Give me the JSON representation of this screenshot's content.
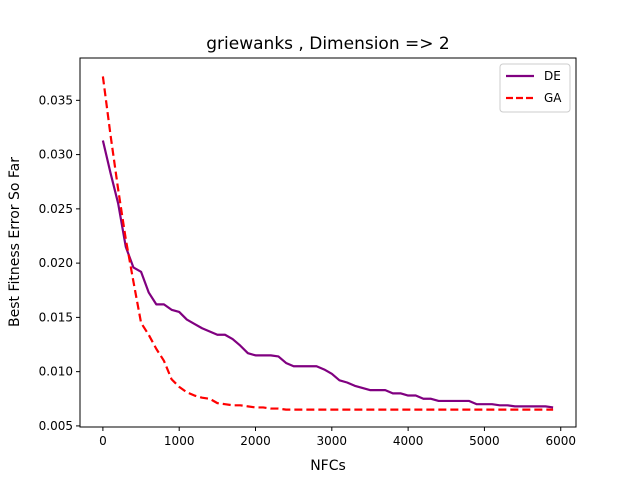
{
  "chart_data": {
    "type": "line",
    "title": "griewanks , Dimension => 2",
    "xlabel": "NFCs",
    "ylabel": "Best Fitness Error So Far",
    "xlim": [
      -300,
      6200
    ],
    "ylim": [
      0.0049,
      0.0389
    ],
    "xticks": [
      0,
      1000,
      2000,
      3000,
      4000,
      5000,
      6000
    ],
    "xtick_labels": [
      "0",
      "1000",
      "2000",
      "3000",
      "4000",
      "5000",
      "6000"
    ],
    "yticks": [
      0.005,
      0.01,
      0.015,
      0.02,
      0.025,
      0.03,
      0.035
    ],
    "ytick_labels": [
      "0.005",
      "0.010",
      "0.015",
      "0.020",
      "0.025",
      "0.030",
      "0.035"
    ],
    "grid": false,
    "legend_position": "top-right",
    "series": [
      {
        "name": "DE",
        "color": "#800080",
        "style": "solid",
        "x": [
          0,
          100,
          200,
          300,
          400,
          500,
          600,
          700,
          800,
          900,
          1000,
          1100,
          1200,
          1300,
          1400,
          1500,
          1600,
          1700,
          1800,
          1900,
          2000,
          2100,
          2200,
          2300,
          2400,
          2500,
          2600,
          2700,
          2800,
          2900,
          3000,
          3100,
          3200,
          3300,
          3400,
          3500,
          3600,
          3700,
          3800,
          3900,
          4000,
          4100,
          4200,
          4300,
          4400,
          4500,
          4600,
          4700,
          4800,
          4900,
          5000,
          5100,
          5200,
          5300,
          5400,
          5500,
          5600,
          5700,
          5800,
          5900
        ],
        "y": [
          0.0313,
          0.0283,
          0.0255,
          0.0215,
          0.0196,
          0.0192,
          0.0173,
          0.0162,
          0.0162,
          0.0157,
          0.0155,
          0.0148,
          0.0144,
          0.014,
          0.0137,
          0.0134,
          0.0134,
          0.013,
          0.0124,
          0.0117,
          0.0115,
          0.0115,
          0.0115,
          0.0114,
          0.0108,
          0.0105,
          0.0105,
          0.0105,
          0.0105,
          0.0102,
          0.0098,
          0.0092,
          0.009,
          0.0087,
          0.0085,
          0.0083,
          0.0083,
          0.0083,
          0.008,
          0.008,
          0.0078,
          0.0078,
          0.0075,
          0.0075,
          0.0073,
          0.0073,
          0.0073,
          0.0073,
          0.0073,
          0.007,
          0.007,
          0.007,
          0.0069,
          0.0069,
          0.0068,
          0.0068,
          0.0068,
          0.0068,
          0.0068,
          0.0067
        ]
      },
      {
        "name": "GA",
        "color": "#ff0000",
        "style": "dashed",
        "x": [
          0,
          100,
          200,
          300,
          400,
          500,
          600,
          700,
          800,
          900,
          1000,
          1100,
          1200,
          1300,
          1400,
          1500,
          1600,
          1700,
          1800,
          1900,
          2000,
          2100,
          2200,
          2300,
          2400,
          2500,
          2600,
          2700,
          2800,
          2900,
          3000,
          3100,
          3200,
          3300,
          3400,
          3500,
          3600,
          3700,
          3800,
          3900,
          4000,
          4100,
          4200,
          4300,
          4400,
          4500,
          4600,
          4700,
          4800,
          4900,
          5000,
          5100,
          5200,
          5300,
          5400,
          5500,
          5600,
          5700,
          5800,
          5900
        ],
        "y": [
          0.0372,
          0.0318,
          0.0268,
          0.0222,
          0.0183,
          0.0145,
          0.0134,
          0.0121,
          0.011,
          0.0093,
          0.0086,
          0.0081,
          0.0078,
          0.0076,
          0.0075,
          0.0071,
          0.007,
          0.0069,
          0.0069,
          0.0068,
          0.0067,
          0.0067,
          0.0066,
          0.0066,
          0.0065,
          0.0065,
          0.0065,
          0.0065,
          0.0065,
          0.0065,
          0.0065,
          0.0065,
          0.0065,
          0.0065,
          0.0065,
          0.0065,
          0.0065,
          0.0065,
          0.0065,
          0.0065,
          0.0065,
          0.0065,
          0.0065,
          0.0065,
          0.0065,
          0.0065,
          0.0065,
          0.0065,
          0.0065,
          0.0065,
          0.0065,
          0.0065,
          0.0065,
          0.0065,
          0.0065,
          0.0065,
          0.0065,
          0.0065,
          0.0065,
          0.0065
        ]
      }
    ]
  }
}
